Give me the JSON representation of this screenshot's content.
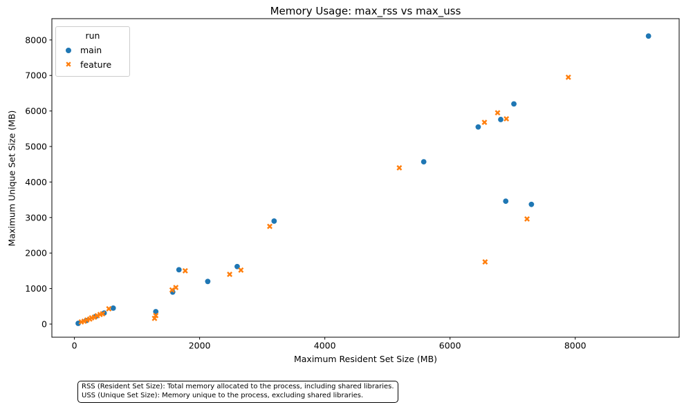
{
  "figure": {
    "title": "Memory Usage: max_rss vs max_uss"
  },
  "footnote": {
    "line1": "RSS (Resident Set Size): Total memory allocated to the process, including shared libraries.",
    "line2": "USS (Unique Set Size): Memory unique to the process, excluding shared libraries."
  },
  "chart_data": {
    "type": "scatter",
    "title": "Memory Usage: max_rss vs max_uss",
    "xlabel": "Maximum Resident Set Size (MB)",
    "ylabel": "Maximum Unique Set Size (MB)",
    "xlim": [
      -360,
      9660
    ],
    "ylim": [
      -370,
      8600
    ],
    "xticks": [
      0,
      2000,
      4000,
      6000,
      8000
    ],
    "yticks": [
      0,
      1000,
      2000,
      3000,
      4000,
      5000,
      6000,
      7000,
      8000
    ],
    "grid": false,
    "legend_title": "run",
    "legend_position": "upper left",
    "series": [
      {
        "name": "main",
        "marker": "circle",
        "color": "#1f77b4",
        "points": [
          [
            60,
            20
          ],
          [
            190,
            100
          ],
          [
            340,
            215
          ],
          [
            475,
            310
          ],
          [
            620,
            450
          ],
          [
            1300,
            350
          ],
          [
            1570,
            900
          ],
          [
            1670,
            1530
          ],
          [
            2130,
            1200
          ],
          [
            2600,
            1620
          ],
          [
            3190,
            2900
          ],
          [
            5580,
            4570
          ],
          [
            6450,
            5550
          ],
          [
            6810,
            5760
          ],
          [
            6890,
            3460
          ],
          [
            7020,
            6200
          ],
          [
            7300,
            3370
          ],
          [
            9170,
            8110
          ]
        ]
      },
      {
        "name": "feature",
        "marker": "X",
        "color": "#ff7f0e",
        "points": [
          [
            110,
            60
          ],
          [
            155,
            80
          ],
          [
            200,
            115
          ],
          [
            245,
            140
          ],
          [
            275,
            175
          ],
          [
            320,
            195
          ],
          [
            365,
            235
          ],
          [
            410,
            270
          ],
          [
            450,
            290
          ],
          [
            550,
            430
          ],
          [
            1280,
            160
          ],
          [
            1300,
            240
          ],
          [
            1560,
            960
          ],
          [
            1620,
            1030
          ],
          [
            1770,
            1500
          ],
          [
            2480,
            1400
          ],
          [
            2660,
            1520
          ],
          [
            3120,
            2750
          ],
          [
            5190,
            4400
          ],
          [
            6550,
            5680
          ],
          [
            6560,
            1750
          ],
          [
            6760,
            5950
          ],
          [
            6900,
            5780
          ],
          [
            7230,
            2960
          ],
          [
            7890,
            6950
          ]
        ]
      }
    ]
  }
}
